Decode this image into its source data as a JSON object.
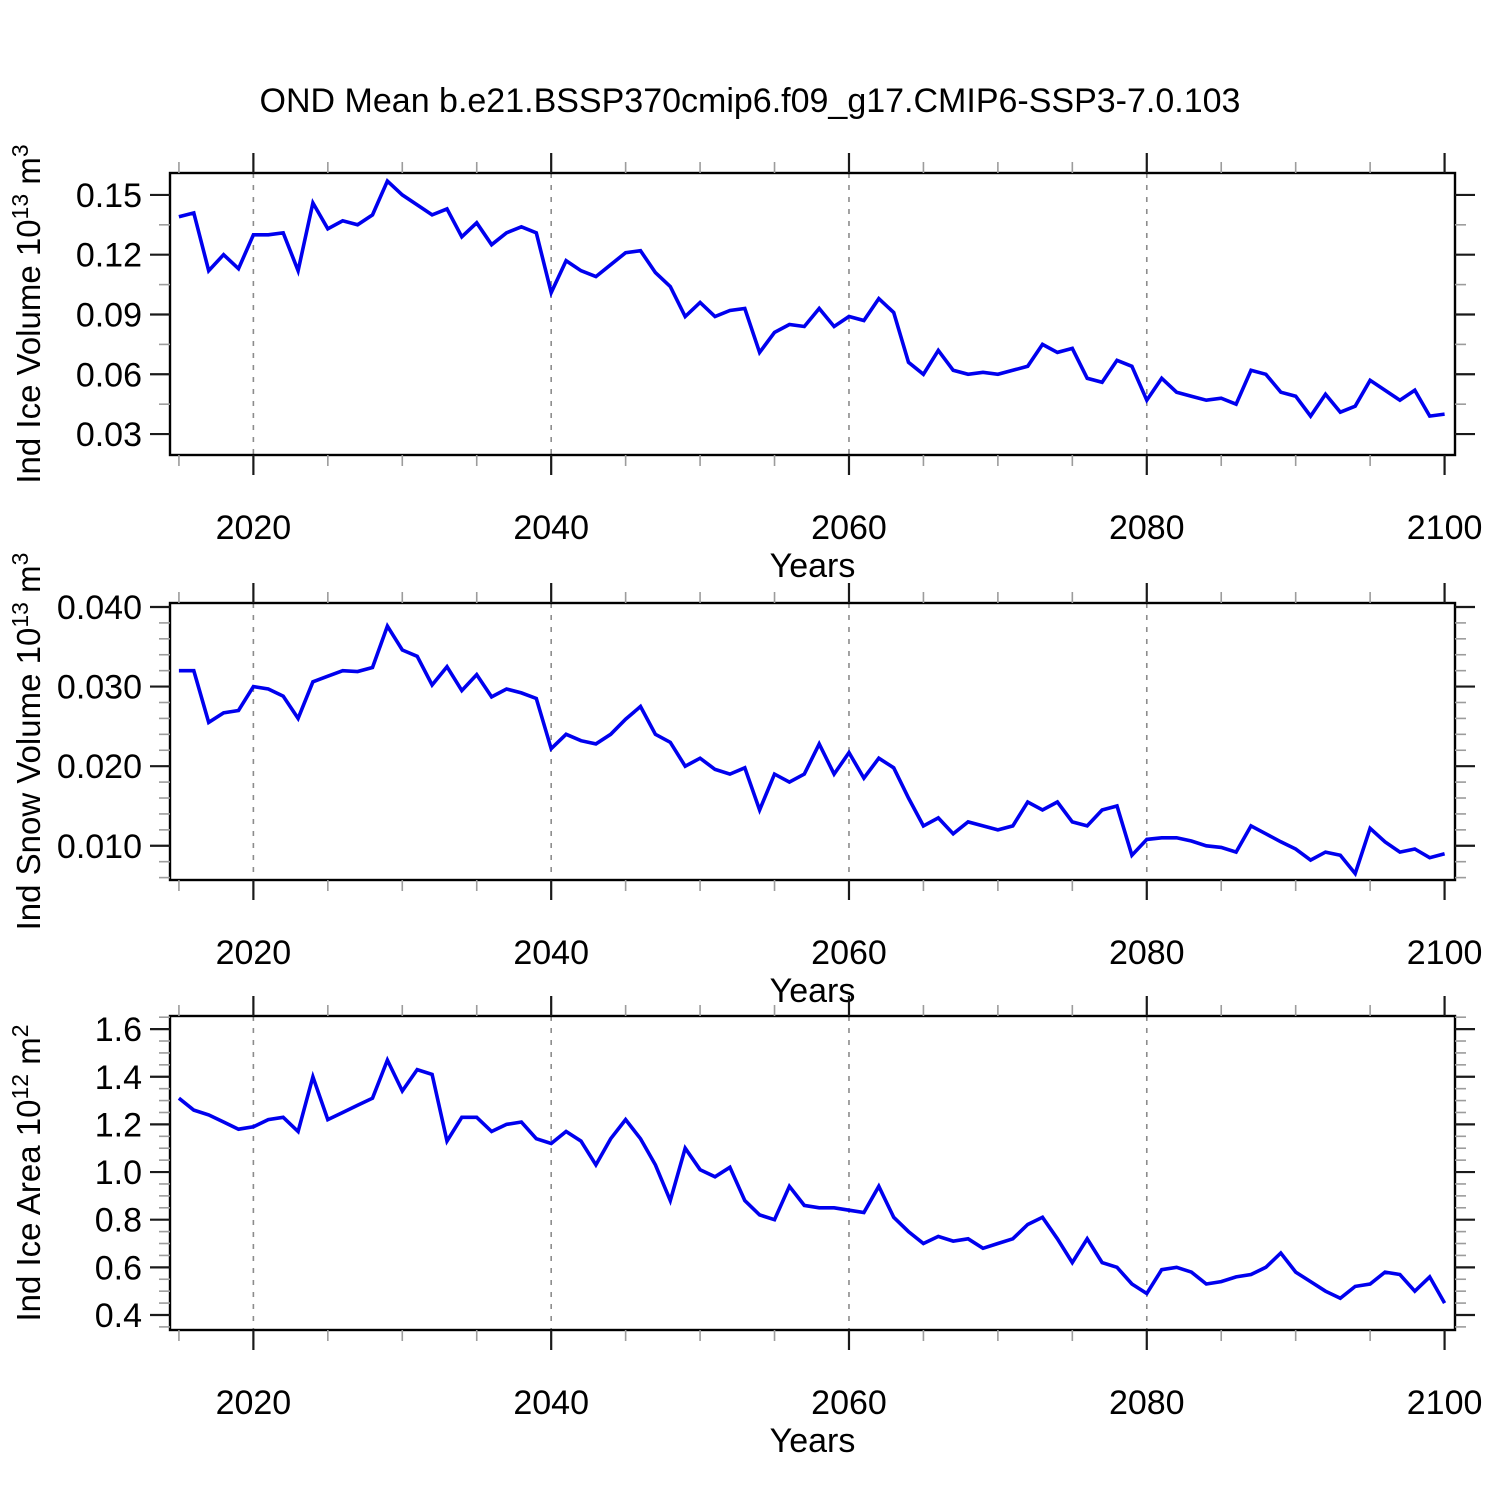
{
  "title": "OND Mean b.e21.BSSP370cmip6.f09_g17.CMIP6-SSP3-7.0.103",
  "colors": {
    "background": "#ffffff",
    "line": "#0000EE",
    "axis": "#000000",
    "grid": "#8c8c8c",
    "major_tick": "#1a1a1a",
    "minor_tick": "#9c9c9c",
    "text": "#000000"
  },
  "x": {
    "xlabel": "Years",
    "first_year": 2015,
    "last_year": 2100,
    "step_years": 1,
    "xlim": [
      2014.4,
      2100.7
    ],
    "major_ticks": [
      2020,
      2040,
      2060,
      2080,
      2100
    ],
    "major_tick_labels": [
      "2020",
      "2040",
      "2060",
      "2080",
      "2100"
    ],
    "minor_tick_step": 5,
    "grid_years": [
      2020,
      2040,
      2060,
      2080
    ],
    "grid_style": "dashed-vertical"
  },
  "chart_data": [
    {
      "type": "line",
      "panel": "ice-volume",
      "ylabel_parts": [
        {
          "text": "Ind Ice Volume 10",
          "sup": false
        },
        {
          "text": "13",
          "sup": true
        },
        {
          "text": " m",
          "sup": false
        },
        {
          "text": "3",
          "sup": true
        }
      ],
      "xlabel": "Years",
      "ylim": [
        0.0195,
        0.161
      ],
      "ytick_values": [
        0.03,
        0.06,
        0.09,
        0.12,
        0.15
      ],
      "ytick_labels": [
        "0.03",
        "0.06",
        "0.09",
        "0.12",
        "0.15"
      ],
      "ytick_minor_step": 0.015,
      "legend": "none",
      "values": [
        0.139,
        0.141,
        0.112,
        0.12,
        0.113,
        0.13,
        0.13,
        0.131,
        0.112,
        0.146,
        0.133,
        0.137,
        0.135,
        0.14,
        0.157,
        0.15,
        0.145,
        0.14,
        0.143,
        0.129,
        0.136,
        0.125,
        0.131,
        0.134,
        0.131,
        0.101,
        0.117,
        0.112,
        0.109,
        0.115,
        0.121,
        0.122,
        0.111,
        0.104,
        0.089,
        0.096,
        0.089,
        0.092,
        0.093,
        0.071,
        0.081,
        0.085,
        0.084,
        0.093,
        0.084,
        0.089,
        0.087,
        0.098,
        0.091,
        0.066,
        0.06,
        0.072,
        0.062,
        0.06,
        0.061,
        0.06,
        0.062,
        0.064,
        0.075,
        0.071,
        0.073,
        0.058,
        0.056,
        0.067,
        0.064,
        0.047,
        0.058,
        0.051,
        0.049,
        0.047,
        0.048,
        0.045,
        0.062,
        0.06,
        0.051,
        0.049,
        0.039,
        0.05,
        0.041,
        0.044,
        0.057,
        0.052,
        0.047,
        0.052,
        0.039,
        0.04
      ]
    },
    {
      "type": "line",
      "panel": "snow-volume",
      "ylabel_parts": [
        {
          "text": "Ind Snow Volume 10",
          "sup": false
        },
        {
          "text": "13",
          "sup": true
        },
        {
          "text": " m",
          "sup": false
        },
        {
          "text": "3",
          "sup": true
        }
      ],
      "xlabel": "Years",
      "ylim": [
        0.0057,
        0.0405
      ],
      "ytick_values": [
        0.01,
        0.02,
        0.03,
        0.04
      ],
      "ytick_labels": [
        "0.010",
        "0.020",
        "0.030",
        "0.040"
      ],
      "ytick_minor_step": 0.002,
      "legend": "none",
      "values": [
        0.032,
        0.032,
        0.0255,
        0.0267,
        0.027,
        0.03,
        0.0297,
        0.0288,
        0.026,
        0.0306,
        0.0313,
        0.032,
        0.0319,
        0.0324,
        0.0376,
        0.0346,
        0.0338,
        0.0302,
        0.0325,
        0.0295,
        0.0315,
        0.0287,
        0.0297,
        0.0292,
        0.0285,
        0.0222,
        0.024,
        0.0232,
        0.0228,
        0.024,
        0.0259,
        0.0275,
        0.024,
        0.023,
        0.02,
        0.021,
        0.0196,
        0.019,
        0.0198,
        0.0145,
        0.019,
        0.018,
        0.019,
        0.0228,
        0.019,
        0.0217,
        0.0185,
        0.021,
        0.0198,
        0.016,
        0.0125,
        0.0135,
        0.0115,
        0.013,
        0.0125,
        0.012,
        0.0125,
        0.0155,
        0.0145,
        0.0155,
        0.013,
        0.0125,
        0.0145,
        0.015,
        0.0088,
        0.0108,
        0.011,
        0.011,
        0.0106,
        0.01,
        0.0098,
        0.0092,
        0.0125,
        0.0115,
        0.0105,
        0.0096,
        0.0082,
        0.0092,
        0.0088,
        0.0065,
        0.0122,
        0.0105,
        0.0092,
        0.0096,
        0.0085,
        0.009
      ]
    },
    {
      "type": "line",
      "panel": "ice-area",
      "ylabel_parts": [
        {
          "text": "Ind Ice Area 10",
          "sup": false
        },
        {
          "text": "12",
          "sup": true
        },
        {
          "text": " m",
          "sup": false
        },
        {
          "text": "2",
          "sup": true
        }
      ],
      "xlabel": "Years",
      "ylim": [
        0.337,
        1.655
      ],
      "ytick_values": [
        0.4,
        0.6,
        0.8,
        1.0,
        1.2,
        1.4,
        1.6
      ],
      "ytick_labels": [
        "0.4",
        "0.6",
        "0.8",
        "1.0",
        "1.2",
        "1.4",
        "1.6"
      ],
      "ytick_minor_step": 0.05,
      "legend": "none",
      "values": [
        1.31,
        1.26,
        1.24,
        1.21,
        1.18,
        1.19,
        1.22,
        1.23,
        1.17,
        1.4,
        1.22,
        1.25,
        1.28,
        1.31,
        1.47,
        1.34,
        1.43,
        1.41,
        1.13,
        1.23,
        1.23,
        1.17,
        1.2,
        1.21,
        1.14,
        1.12,
        1.17,
        1.13,
        1.03,
        1.14,
        1.22,
        1.14,
        1.03,
        0.88,
        1.1,
        1.01,
        0.98,
        1.02,
        0.88,
        0.82,
        0.8,
        0.94,
        0.86,
        0.85,
        0.85,
        0.84,
        0.83,
        0.94,
        0.81,
        0.75,
        0.7,
        0.73,
        0.71,
        0.72,
        0.68,
        0.7,
        0.72,
        0.78,
        0.81,
        0.72,
        0.62,
        0.72,
        0.62,
        0.6,
        0.53,
        0.49,
        0.59,
        0.6,
        0.58,
        0.53,
        0.54,
        0.56,
        0.57,
        0.6,
        0.66,
        0.58,
        0.54,
        0.5,
        0.47,
        0.52,
        0.53,
        0.58,
        0.57,
        0.5,
        0.56,
        0.45
      ]
    }
  ]
}
